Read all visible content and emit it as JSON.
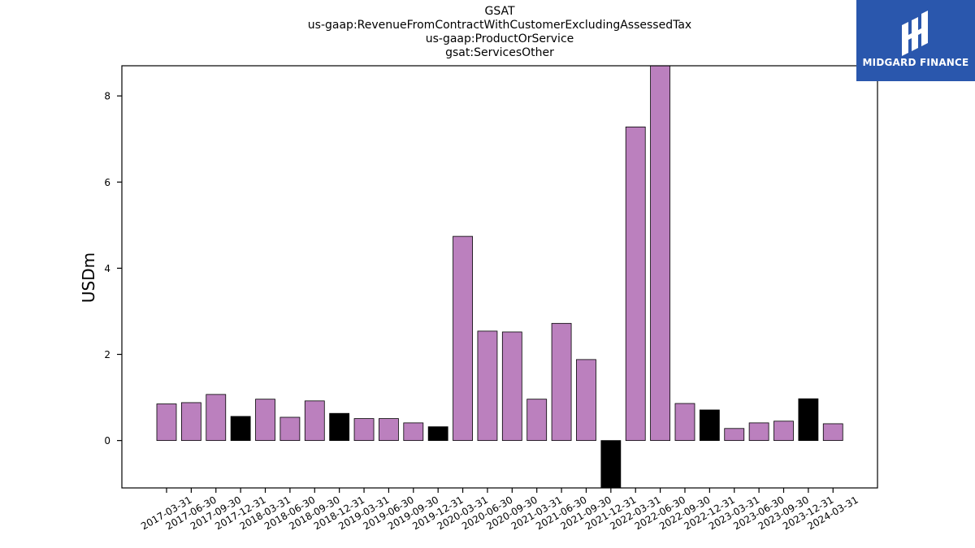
{
  "chart_data": {
    "type": "bar",
    "title_lines": [
      "GSAT",
      "us-gaap:RevenueFromContractWithCustomerExcludingAssessedTax",
      "us-gaap:ProductOrService",
      "gsat:ServicesOther"
    ],
    "xlabel": "",
    "ylabel": "USDm",
    "ylim": [
      -1.1,
      8.7
    ],
    "yticks": [
      0,
      2,
      4,
      6,
      8
    ],
    "categories": [
      "2017-03-31",
      "2017-06-30",
      "2017-09-30",
      "2017-12-31",
      "2018-03-31",
      "2018-06-30",
      "2018-09-30",
      "2018-12-31",
      "2019-03-31",
      "2019-06-30",
      "2019-09-30",
      "2019-12-31",
      "2020-03-31",
      "2020-06-30",
      "2020-09-30",
      "2021-03-31",
      "2021-06-30",
      "2021-09-30",
      "2021-12-31",
      "2022-03-31",
      "2022-06-30",
      "2022-09-30",
      "2022-12-31",
      "2023-03-31",
      "2023-06-30",
      "2023-09-30",
      "2023-12-31",
      "2024-03-31"
    ],
    "values": [
      0.85,
      0.88,
      1.07,
      0.56,
      0.96,
      0.54,
      0.92,
      0.63,
      0.51,
      0.51,
      0.41,
      0.32,
      4.74,
      2.54,
      2.52,
      0.96,
      2.72,
      1.88,
      -1.1,
      7.28,
      8.7,
      0.86,
      0.71,
      0.28,
      0.41,
      0.45,
      0.97,
      0.39
    ],
    "bar_kinds": [
      "q",
      "q",
      "q",
      "y",
      "q",
      "q",
      "q",
      "y",
      "q",
      "q",
      "q",
      "y",
      "q",
      "q",
      "q",
      "q",
      "q",
      "q",
      "y",
      "q",
      "q",
      "q",
      "y",
      "q",
      "q",
      "q",
      "y",
      "q"
    ],
    "colors": {
      "q": "#bb80be",
      "y": "#000000",
      "edge": "#000000"
    },
    "grid": false,
    "legend": "none"
  },
  "logo": {
    "text": "MIDGARD FINANCE"
  }
}
